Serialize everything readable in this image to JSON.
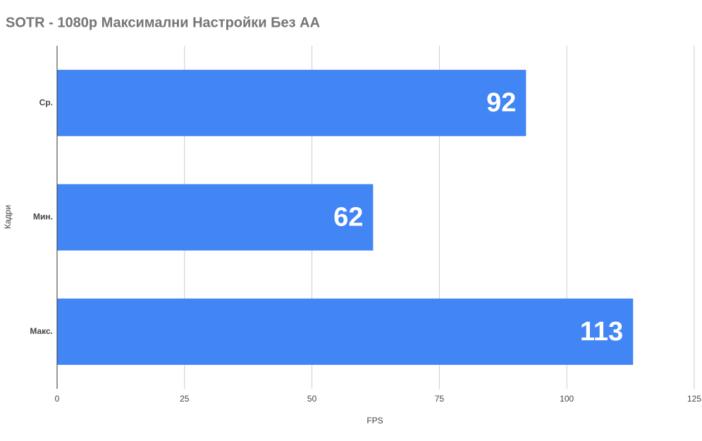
{
  "chart_data": {
    "type": "bar",
    "orientation": "horizontal",
    "title": "SOTR - 1080p Максимални Настройки Без АА",
    "x_label": "FPS",
    "y_label": "Кадри",
    "categories": [
      "Ср.",
      "Мин.",
      "Макс."
    ],
    "values": [
      92,
      62,
      113
    ],
    "color": "#4285f4",
    "xlim": [
      0,
      125
    ],
    "xticks": [
      0,
      25,
      50,
      75,
      100,
      125
    ],
    "grid": true
  }
}
